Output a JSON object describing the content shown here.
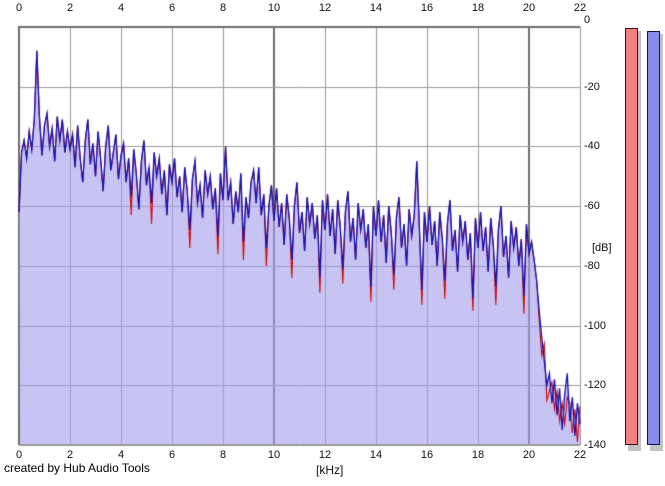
{
  "window": {
    "credit_text": "created by Hub Audio Tools"
  },
  "axes": {
    "x": {
      "unit_label": "[kHz]",
      "tick_labels": [
        "0",
        "2",
        "4",
        "6",
        "8",
        "10",
        "12",
        "14",
        "16",
        "18",
        "20",
        "22"
      ],
      "min_khz": 0,
      "max_khz": 22,
      "tick_step_khz": 2,
      "major_gridlines_khz": [
        0,
        10,
        20
      ]
    },
    "y": {
      "unit_label": "[dB]",
      "tick_labels": [
        "0",
        "-20",
        "-40",
        "-60",
        "-80",
        "-100",
        "-120",
        "-140"
      ],
      "min_db": -140,
      "max_db": 0,
      "tick_step_db": 20
    }
  },
  "level_meters": {
    "shadow_color": "#c3c3c3",
    "pink_bar": {
      "color": "#f38181",
      "border_color": "#3a1212",
      "level_db": -0.5
    },
    "blue_bar": {
      "color": "#8a8aec",
      "border_color": "#12124e",
      "level_db": -1.5
    }
  },
  "colors": {
    "background": "#ffffff",
    "grid_minor": "#9a9a9a",
    "grid_major": "#6e6e6e",
    "border": "#6e6e6e",
    "trace_blue": "#1414b4",
    "trace_red": "#d40808",
    "area_fill": "rgba(164,158,235,0.62)",
    "label_text": "#111111"
  },
  "chart_data": {
    "type": "area",
    "title": "",
    "xlabel": "[kHz]",
    "ylabel": "[dB]",
    "x_start_khz": 0,
    "x_step_khz": 0.1,
    "xlim": [
      0,
      22
    ],
    "ylim": [
      -140,
      0
    ],
    "grid": true,
    "legend": "none",
    "notes": "noisy audio spectrum, sharp roll-off above 20 kHz, narrow peaks at 0.7 kHz (-8 dB) and 15.6 kHz (-45 dB)",
    "series": [
      {
        "name": "channel-red",
        "color": "#d40808",
        "values_db": [
          -62,
          -42,
          -38,
          -44,
          -35,
          -41,
          -31,
          -8,
          -30,
          -43,
          -33,
          -29,
          -40,
          -34,
          -45,
          -30,
          -38,
          -31,
          -42,
          -35,
          -41,
          -36,
          -47,
          -33,
          -44,
          -52,
          -38,
          -31,
          -46,
          -39,
          -50,
          -35,
          -44,
          -55,
          -40,
          -33,
          -48,
          -42,
          -36,
          -51,
          -43,
          -39,
          -52,
          -44,
          -63,
          -41,
          -49,
          -61,
          -45,
          -38,
          -53,
          -47,
          -66,
          -42,
          -50,
          -44,
          -56,
          -48,
          -63,
          -46,
          -52,
          -44,
          -57,
          -50,
          -62,
          -47,
          -55,
          -74,
          -51,
          -45,
          -59,
          -53,
          -64,
          -48,
          -56,
          -50,
          -61,
          -54,
          -76,
          -49,
          -58,
          -40,
          -58,
          -52,
          -66,
          -55,
          -62,
          -49,
          -78,
          -57,
          -64,
          -52,
          -48,
          -59,
          -47,
          -63,
          -56,
          -80,
          -60,
          -53,
          -65,
          -54,
          -67,
          -59,
          -73,
          -56,
          -64,
          -84,
          -60,
          -52,
          -69,
          -62,
          -75,
          -57,
          -66,
          -59,
          -71,
          -63,
          -89,
          -58,
          -68,
          -56,
          -70,
          -61,
          -76,
          -58,
          -67,
          -86,
          -62,
          -55,
          -72,
          -64,
          -78,
          -59,
          -68,
          -61,
          -74,
          -66,
          -92,
          -60,
          -70,
          -58,
          -72,
          -63,
          -79,
          -60,
          -69,
          -88,
          -64,
          -57,
          -74,
          -66,
          -80,
          -61,
          -70,
          -63,
          -45,
          -67,
          -93,
          -62,
          -72,
          -60,
          -73,
          -65,
          -80,
          -62,
          -71,
          -91,
          -66,
          -58,
          -75,
          -68,
          -82,
          -63,
          -72,
          -65,
          -78,
          -69,
          -95,
          -64,
          -74,
          -62,
          -75,
          -67,
          -82,
          -64,
          -73,
          -93,
          -68,
          -60,
          -77,
          -70,
          -84,
          -65,
          -74,
          -67,
          -80,
          -71,
          -96,
          -66,
          -76,
          -72,
          -78,
          -85,
          -98,
          -110,
          -106,
          -125,
          -122,
          -119,
          -128,
          -122,
          -132,
          -126,
          -133,
          -124,
          -126,
          -136,
          -128,
          -139,
          -127
        ]
      },
      {
        "name": "channel-blue",
        "color": "#1414b4",
        "values_db": [
          -62,
          -42,
          -38,
          -44,
          -35,
          -41,
          -31,
          -8,
          -30,
          -43,
          -33,
          -29,
          -40,
          -34,
          -45,
          -30,
          -38,
          -31,
          -42,
          -35,
          -41,
          -36,
          -47,
          -33,
          -44,
          -52,
          -38,
          -31,
          -46,
          -39,
          -50,
          -35,
          -44,
          -55,
          -40,
          -33,
          -48,
          -42,
          -36,
          -51,
          -43,
          -39,
          -52,
          -44,
          -57,
          -41,
          -49,
          -61,
          -45,
          -38,
          -53,
          -47,
          -59,
          -42,
          -50,
          -44,
          -56,
          -48,
          -63,
          -46,
          -52,
          -44,
          -57,
          -50,
          -62,
          -47,
          -55,
          -68,
          -51,
          -45,
          -59,
          -53,
          -64,
          -48,
          -56,
          -50,
          -61,
          -54,
          -70,
          -49,
          -58,
          -40,
          -58,
          -52,
          -66,
          -55,
          -62,
          -49,
          -72,
          -57,
          -64,
          -52,
          -48,
          -59,
          -47,
          -63,
          -56,
          -74,
          -60,
          -53,
          -65,
          -54,
          -67,
          -59,
          -73,
          -56,
          -64,
          -78,
          -60,
          -52,
          -69,
          -62,
          -75,
          -57,
          -66,
          -59,
          -71,
          -63,
          -84,
          -58,
          -68,
          -56,
          -70,
          -61,
          -76,
          -58,
          -67,
          -81,
          -62,
          -55,
          -72,
          -64,
          -78,
          -59,
          -68,
          -61,
          -74,
          -66,
          -87,
          -60,
          -70,
          -58,
          -72,
          -63,
          -79,
          -60,
          -69,
          -83,
          -64,
          -57,
          -74,
          -66,
          -80,
          -61,
          -70,
          -63,
          -45,
          -67,
          -88,
          -62,
          -72,
          -60,
          -73,
          -65,
          -80,
          -62,
          -71,
          -85,
          -66,
          -58,
          -75,
          -68,
          -82,
          -63,
          -72,
          -65,
          -78,
          -69,
          -91,
          -64,
          -74,
          -62,
          -75,
          -67,
          -82,
          -64,
          -73,
          -87,
          -68,
          -60,
          -77,
          -70,
          -84,
          -65,
          -74,
          -67,
          -80,
          -71,
          -90,
          -66,
          -76,
          -72,
          -78,
          -85,
          -95,
          -104,
          -112,
          -120,
          -116,
          -126,
          -118,
          -130,
          -121,
          -135,
          -123,
          -116,
          -132,
          -124,
          -137,
          -126,
          -133
        ]
      }
    ]
  }
}
